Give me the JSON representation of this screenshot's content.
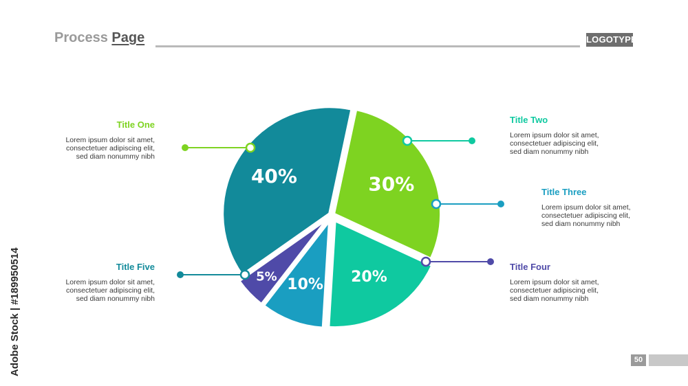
{
  "header": {
    "title_part1": "Process ",
    "title_part2": "Page",
    "logo": "LOGOTYPE"
  },
  "colors": {
    "title_one": "#7ed321",
    "title_two": "#0fc9a0",
    "title_three": "#1a9ec1",
    "title_four": "#4f4aa8",
    "title_five": "#128a9a"
  },
  "callouts": [
    {
      "title": "Title One",
      "lines": [
        "Lorem ipsum dolor sit amet,",
        "consectetuer adipiscing elit,",
        "sed diam nonummy nibh"
      ]
    },
    {
      "title": "Title Two",
      "lines": [
        "Lorem ipsum dolor sit amet,",
        "consectetuer adipiscing elit,",
        "sed diam nonummy nibh"
      ]
    },
    {
      "title": "Title Three",
      "lines": [
        "Lorem ipsum dolor sit amet,",
        "consectetuer adipiscing elit,",
        "sed diam nonummy nibh"
      ]
    },
    {
      "title": "Title Four",
      "lines": [
        "Lorem ipsum dolor sit amet,",
        "consectetuer adipiscing elit,",
        "sed diam nonummy nibh"
      ]
    },
    {
      "title": "Title Five",
      "lines": [
        "Lorem ipsum dolor sit amet,",
        "consectetuer adipiscing elit,",
        "sed diam nonummy nibh"
      ]
    }
  ],
  "chart_data": {
    "type": "pie",
    "title": "",
    "slices": [
      {
        "label": "Title One",
        "value": 30,
        "display": "30%",
        "color": "#7ed321"
      },
      {
        "label": "Title Two",
        "value": 20,
        "display": "20%",
        "color": "#0fc9a0"
      },
      {
        "label": "Title Three",
        "value": 10,
        "display": "10%",
        "color": "#1a9ec1"
      },
      {
        "label": "Title Four",
        "value": 5,
        "display": "5%",
        "color": "#4f4aa8"
      },
      {
        "label": "Title Five",
        "value": 40,
        "display": "40%",
        "color": "#128a9a"
      }
    ],
    "legend": "callouts"
  },
  "footer": {
    "page_number": "50",
    "watermark": "Adobe Stock | #189950514"
  }
}
